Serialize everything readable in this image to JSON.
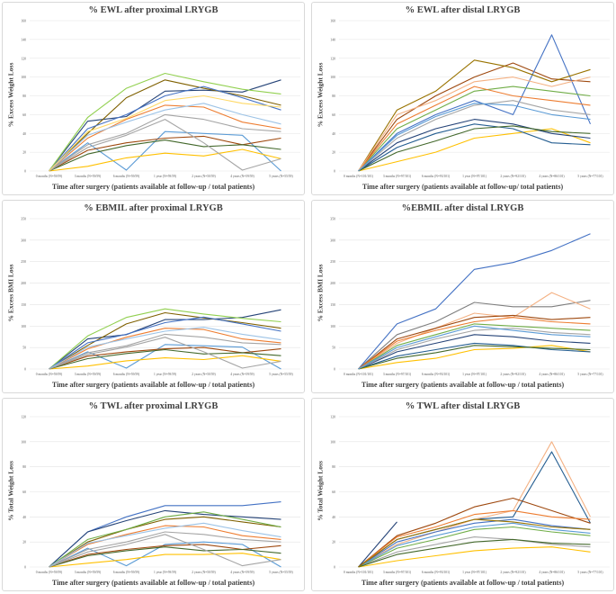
{
  "palette": [
    "#4472C4",
    "#ED7D31",
    "#A5A5A5",
    "#FFC000",
    "#5B9BD5",
    "#70AD47",
    "#264478",
    "#9E480E",
    "#636363",
    "#997300",
    "#255E91",
    "#43682B",
    "#698ED0"
  ],
  "chart_data": [
    {
      "type": "line",
      "title": "% EWL after proximal LRYGB",
      "ylabel": "% Excess Weight Loss",
      "xlabel": "Time after surgery (patients available at follow-up / total patients)",
      "categories": [
        "0 months (N=59/59)",
        "3 months (N=59/59)",
        "6 months (N=59/59)",
        "1 year (N=59/59)",
        "2 years (N=50/59)",
        "4 years (N=59/59)",
        "5 years (N=55/59)"
      ],
      "ylim": [
        0,
        160
      ],
      "ystep": 20,
      "grid": true,
      "series": [
        {
          "color": "#264478",
          "values": [
            0,
            53,
            58,
            85,
            86,
            84,
            97
          ]
        },
        {
          "color": "#92D050",
          "values": [
            0,
            57,
            88,
            104,
            95,
            87,
            82
          ]
        },
        {
          "color": "#7F6000",
          "values": [
            0,
            40,
            78,
            97,
            88,
            80,
            70
          ]
        },
        {
          "color": "#5B9BD5",
          "values": [
            0,
            30,
            1,
            42,
            40,
            38,
            0
          ]
        },
        {
          "color": "#FFC000",
          "values": [
            0,
            5,
            14,
            19,
            16,
            23,
            13
          ]
        },
        {
          "color": "#9E480E",
          "values": [
            0,
            22,
            30,
            35,
            37,
            28,
            35
          ]
        },
        {
          "color": "#ED7D31",
          "values": [
            0,
            35,
            55,
            70,
            68,
            52,
            45
          ]
        },
        {
          "color": "#4472C4",
          "values": [
            0,
            45,
            60,
            80,
            90,
            78,
            65
          ]
        },
        {
          "color": "#A5A5A5",
          "values": [
            0,
            28,
            40,
            60,
            55,
            45,
            42
          ]
        },
        {
          "color": "#43682B",
          "values": [
            0,
            18,
            27,
            33,
            26,
            28,
            23
          ]
        },
        {
          "color": "#9DC3E6",
          "values": [
            0,
            38,
            52,
            65,
            72,
            60,
            50
          ]
        },
        {
          "color": "#A5A5A5",
          "values": [
            0,
            25,
            38,
            55,
            30,
            1,
            13
          ]
        },
        {
          "color": "#FFD966",
          "values": [
            0,
            42,
            56,
            75,
            80,
            72,
            68
          ]
        }
      ]
    },
    {
      "type": "line",
      "title": "% EWL after distal LRYGB",
      "ylabel": "% Excess Weight Loss",
      "xlabel": "Time after surgery (patients available at follow-up/ total patients)",
      "categories": [
        "0 months (N=101/101)",
        "3 months (N=97/101)",
        "6 months (N=93/101)",
        "1 year (N=97/101)",
        "2 years (N=92/101)",
        "4 years (N=86/101)",
        "5 years (N=77/101)"
      ],
      "ylim": [
        0,
        160
      ],
      "ystep": 20,
      "grid": true,
      "series": [
        {
          "color": "#9E480E",
          "values": [
            0,
            55,
            80,
            100,
            115,
            98,
            95
          ]
        },
        {
          "color": "#4472C4",
          "values": [
            0,
            40,
            60,
            75,
            60,
            145,
            50
          ]
        },
        {
          "color": "#FFC000",
          "values": [
            0,
            10,
            20,
            35,
            40,
            45,
            30
          ]
        },
        {
          "color": "#997300",
          "values": [
            0,
            65,
            85,
            118,
            110,
            95,
            108
          ]
        },
        {
          "color": "#264478",
          "values": [
            0,
            30,
            45,
            55,
            50,
            40,
            35
          ]
        },
        {
          "color": "#70AD47",
          "values": [
            0,
            45,
            65,
            85,
            90,
            85,
            80
          ]
        },
        {
          "color": "#255E91",
          "values": [
            0,
            25,
            40,
            50,
            45,
            30,
            28
          ]
        },
        {
          "color": "#ED7D31",
          "values": [
            0,
            50,
            70,
            90,
            80,
            75,
            70
          ]
        },
        {
          "color": "#A5A5A5",
          "values": [
            0,
            35,
            55,
            70,
            75,
            65,
            60
          ]
        },
        {
          "color": "#43682B",
          "values": [
            0,
            20,
            32,
            45,
            48,
            42,
            40
          ]
        },
        {
          "color": "#F4B183",
          "values": [
            0,
            60,
            75,
            95,
            100,
            90,
            100
          ]
        },
        {
          "color": "#5B9BD5",
          "values": [
            0,
            38,
            58,
            72,
            70,
            60,
            55
          ]
        }
      ]
    },
    {
      "type": "line",
      "title": "% EBMIL after proximal LRYGB",
      "ylabel": "% Excess BMI Loss",
      "xlabel": "Time after surgery (patients available at follow-up / total patients)",
      "categories": [
        "0 months (N=59/59)",
        "3 months (N=59/59)",
        "6 months (N=59/59)",
        "1 year (N=59/59)",
        "2 years (N=50/59)",
        "4 years (N=59/59)",
        "5 years (N=55/59)"
      ],
      "ylim": [
        0,
        350
      ],
      "ystep": 50,
      "grid": true,
      "series": [
        {
          "color": "#264478",
          "values": [
            0,
            70,
            80,
            115,
            115,
            120,
            138
          ]
        },
        {
          "color": "#92D050",
          "values": [
            0,
            77,
            120,
            140,
            128,
            118,
            110
          ]
        },
        {
          "color": "#7F6000",
          "values": [
            0,
            55,
            105,
            131,
            119,
            108,
            95
          ]
        },
        {
          "color": "#5B9BD5",
          "values": [
            0,
            40,
            2,
            57,
            54,
            51,
            0
          ]
        },
        {
          "color": "#FFC000",
          "values": [
            0,
            7,
            19,
            26,
            22,
            31,
            18
          ]
        },
        {
          "color": "#9E480E",
          "values": [
            0,
            30,
            40,
            47,
            50,
            38,
            47
          ]
        },
        {
          "color": "#ED7D31",
          "values": [
            0,
            47,
            74,
            95,
            92,
            70,
            61
          ]
        },
        {
          "color": "#4472C4",
          "values": [
            0,
            61,
            81,
            108,
            121,
            105,
            88
          ]
        },
        {
          "color": "#A5A5A5",
          "values": [
            0,
            38,
            54,
            81,
            74,
            61,
            57
          ]
        },
        {
          "color": "#43682B",
          "values": [
            0,
            24,
            36,
            45,
            35,
            38,
            31
          ]
        },
        {
          "color": "#9DC3E6",
          "values": [
            0,
            51,
            70,
            88,
            97,
            81,
            68
          ]
        },
        {
          "color": "#A5A5A5",
          "values": [
            0,
            34,
            51,
            74,
            40,
            2,
            18
          ]
        }
      ]
    },
    {
      "type": "line",
      "title": "%EBMIL after distal LRYGB",
      "ylabel": "% Excess BMI Loss",
      "xlabel": "Time after surgery (patients available at follow-up / total patients)",
      "categories": [
        "0 months (N=101/101)",
        "3 months (N=97/101)",
        "6 months (N=93/101)",
        "1 year (N=97/101)",
        "2 years (N=92/101)",
        "4 years (N=86/101)",
        "5 years (N=77/101)"
      ],
      "ylim": [
        0,
        350
      ],
      "ystep": 50,
      "grid": true,
      "series": [
        {
          "color": "#4472C4",
          "values": [
            0,
            105,
            140,
            232,
            248,
            276,
            315
          ]
        },
        {
          "color": "#7F7F7F",
          "values": [
            0,
            80,
            110,
            155,
            145,
            145,
            160
          ]
        },
        {
          "color": "#F4B183",
          "values": [
            0,
            60,
            95,
            130,
            120,
            178,
            140
          ]
        },
        {
          "color": "#FFC000",
          "values": [
            0,
            15,
            25,
            45,
            48,
            55,
            40
          ]
        },
        {
          "color": "#9E480E",
          "values": [
            0,
            70,
            95,
            120,
            125,
            115,
            120
          ]
        },
        {
          "color": "#264478",
          "values": [
            0,
            40,
            60,
            80,
            75,
            65,
            60
          ]
        },
        {
          "color": "#70AD47",
          "values": [
            0,
            55,
            80,
            105,
            100,
            95,
            90
          ]
        },
        {
          "color": "#255E91",
          "values": [
            0,
            30,
            45,
            60,
            55,
            45,
            40
          ]
        },
        {
          "color": "#ED7D31",
          "values": [
            0,
            65,
            90,
            110,
            120,
            110,
            105
          ]
        },
        {
          "color": "#A5A5A5",
          "values": [
            0,
            45,
            70,
            90,
            95,
            85,
            80
          ]
        },
        {
          "color": "#43682B",
          "values": [
            0,
            25,
            38,
            55,
            52,
            48,
            45
          ]
        },
        {
          "color": "#5B9BD5",
          "values": [
            0,
            50,
            75,
            100,
            90,
            80,
            75
          ]
        }
      ]
    },
    {
      "type": "line",
      "title": "% TWL after proximal LRYGB",
      "ylabel": "% Total Weight Loss",
      "xlabel": "Time after surgery (patients available at follow-up / total patients)",
      "categories": [
        "0 months (N=59/59)",
        "3 months (N=59/59)",
        "6 months (N=59/59)",
        "1 year (N=59/59)",
        "2 years (N=50/59)",
        "4 years (N=59/59)",
        "5 years (N=55/59)"
      ],
      "ylim": [
        0,
        120
      ],
      "ystep": 20,
      "grid": true,
      "series": [
        {
          "color": "#4472C4",
          "values": [
            0,
            28,
            40,
            49,
            49,
            49,
            52
          ]
        },
        {
          "color": "#264478",
          "values": [
            0,
            28,
            37,
            45,
            42,
            40,
            38
          ]
        },
        {
          "color": "#7F6000",
          "values": [
            0,
            20,
            30,
            38,
            40,
            36,
            32
          ]
        },
        {
          "color": "#5B9BD5",
          "values": [
            0,
            15,
            1,
            18,
            20,
            18,
            0
          ]
        },
        {
          "color": "#FFC000",
          "values": [
            0,
            3,
            6,
            10,
            10,
            11,
            6
          ]
        },
        {
          "color": "#9E480E",
          "values": [
            0,
            10,
            14,
            17,
            18,
            14,
            17
          ]
        },
        {
          "color": "#ED7D31",
          "values": [
            0,
            18,
            26,
            33,
            32,
            25,
            22
          ]
        },
        {
          "color": "#70AD47",
          "values": [
            0,
            22,
            30,
            40,
            44,
            38,
            32
          ]
        },
        {
          "color": "#A5A5A5",
          "values": [
            0,
            14,
            20,
            28,
            26,
            22,
            20
          ]
        },
        {
          "color": "#43682B",
          "values": [
            0,
            9,
            13,
            16,
            13,
            14,
            11
          ]
        },
        {
          "color": "#9DC3E6",
          "values": [
            0,
            19,
            25,
            31,
            35,
            29,
            24
          ]
        },
        {
          "color": "#A5A5A5",
          "values": [
            0,
            12,
            18,
            26,
            14,
            1,
            6
          ]
        }
      ]
    },
    {
      "type": "line",
      "title": "% TWL after distal LRYGB",
      "ylabel": "% Total Weight Loss",
      "xlabel": "Time after surgery (patients available at follow-up / total patients)",
      "categories": [
        "0 months (N=101/101)",
        "3 months (N=97/101)",
        "6 months (N=93/101)",
        "1 year (N=97/101)",
        "2 years (N=92/101)",
        "4 years (N=86/101)",
        "5 years (N=77/101)"
      ],
      "ylim": [
        0,
        120
      ],
      "ystep": 20,
      "grid": true,
      "series": [
        {
          "color": "#264478",
          "values": [
            0,
            36,
            null,
            null,
            null,
            null,
            null
          ]
        },
        {
          "color": "#255E91",
          "values": [
            0,
            22,
            30,
            38,
            40,
            92,
            35
          ]
        },
        {
          "color": "#F4B183",
          "values": [
            0,
            18,
            28,
            38,
            45,
            100,
            40
          ]
        },
        {
          "color": "#9E480E",
          "values": [
            0,
            25,
            35,
            48,
            55,
            45,
            35
          ]
        },
        {
          "color": "#FFC000",
          "values": [
            0,
            5,
            9,
            13,
            15,
            16,
            12
          ]
        },
        {
          "color": "#70AD47",
          "values": [
            0,
            15,
            22,
            30,
            32,
            28,
            25
          ]
        },
        {
          "color": "#4472C4",
          "values": [
            0,
            20,
            28,
            35,
            38,
            33,
            30
          ]
        },
        {
          "color": "#A5A5A5",
          "values": [
            0,
            12,
            18,
            24,
            22,
            18,
            16
          ]
        },
        {
          "color": "#ED7D31",
          "values": [
            0,
            24,
            32,
            42,
            45,
            40,
            38
          ]
        },
        {
          "color": "#5B9BD5",
          "values": [
            0,
            17,
            25,
            32,
            35,
            30,
            27
          ]
        },
        {
          "color": "#43682B",
          "values": [
            0,
            10,
            15,
            20,
            22,
            19,
            18
          ]
        },
        {
          "color": "#997300",
          "values": [
            0,
            22,
            30,
            38,
            36,
            32,
            30
          ]
        }
      ]
    }
  ]
}
